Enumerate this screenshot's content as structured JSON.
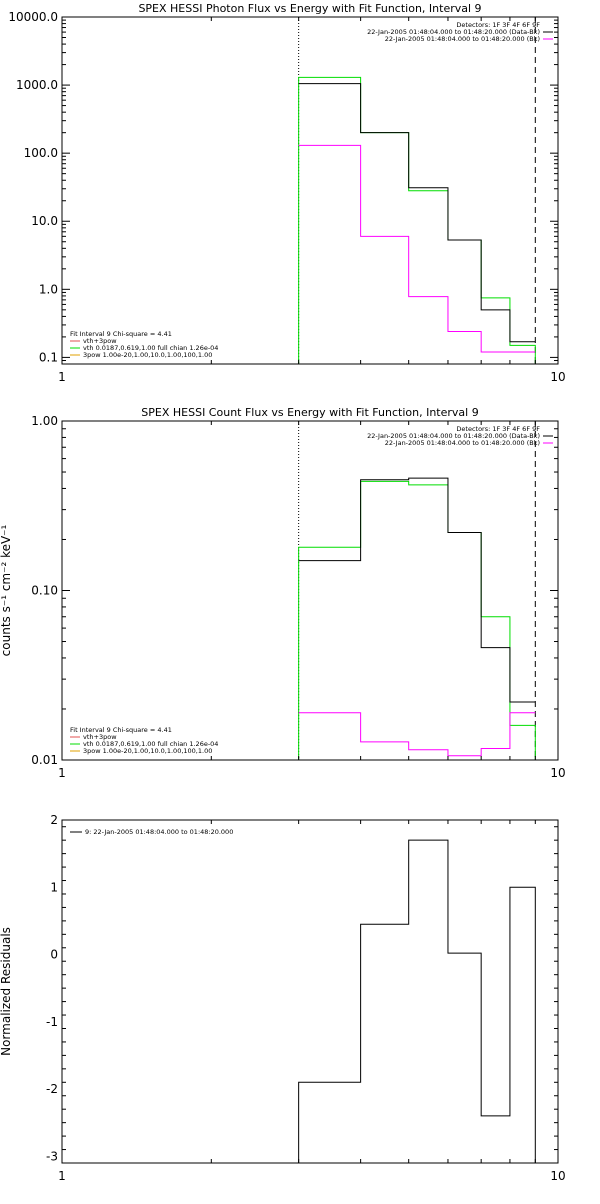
{
  "chart_data": [
    {
      "type": "line",
      "title": "SPEX HESSI Photon Flux vs Energy with Fit Function, Interval 9",
      "xlabel": "",
      "ylabel": "",
      "xscale": "log",
      "yscale": "log",
      "xlim": [
        1,
        10
      ],
      "ylim": [
        0.08,
        10000
      ],
      "x_ticks": [
        "1",
        "10"
      ],
      "y_ticks": [
        {
          "value": 0.1,
          "label": "0.1"
        },
        {
          "value": 1,
          "label": "1.0"
        },
        {
          "value": 10,
          "label": "10.0"
        },
        {
          "value": 100,
          "label": "100.0"
        },
        {
          "value": 1000,
          "label": "1000.0"
        },
        {
          "value": 10000,
          "label": "10000.0"
        }
      ],
      "header_lines": [
        "Detectors: 1F 3F 4F 6F 9F",
        "22-Jan-2005 01:48:04.000 to 01:48:20.000 (Data-Bk)",
        "22-Jan-2005 01:48:04.000 to 01:48:20.000 (Bk)"
      ],
      "header_colors": [
        "#000000",
        "#000000",
        "#ff00ff"
      ],
      "legend_title": "Fit Interval 9   Chi-square = 4.41",
      "legend_entries": [
        {
          "text": "vth+3pow",
          "color": "#e05050"
        },
        {
          "text": "vth 0.0187,0.619,1.00  full chian 1.26e-04",
          "color": "#00dd00"
        },
        {
          "text": "3pow 1.00e-20,1.00,10.0,1.00,100,1.00",
          "color": "#e0a000"
        }
      ],
      "legend_position": "bottom-left",
      "vlines": [
        {
          "x": 3,
          "style": "dotted",
          "color": "#000000"
        },
        {
          "x": 9,
          "style": "dashed",
          "color": "#000000"
        }
      ],
      "edges": [
        3,
        4,
        5,
        6,
        7,
        8,
        9
      ],
      "series": [
        {
          "color": "#00dd00",
          "values": [
            1300,
            200,
            28,
            5.3,
            0.75,
            0.15
          ],
          "drop_to_bottom": true
        },
        {
          "color": "#000000",
          "values": [
            1050,
            200,
            31,
            5.3,
            0.5,
            0.17
          ],
          "drop_to_bottom": false
        },
        {
          "color": "#ff00ff",
          "values": [
            130,
            6,
            0.78,
            0.24,
            0.12,
            0.12
          ],
          "drop_to_bottom": false
        }
      ]
    },
    {
      "type": "line",
      "title": "SPEX HESSI Count Flux vs Energy with Fit Function, Interval 9",
      "xlabel": "",
      "ylabel": "counts s⁻¹ cm⁻² keV⁻¹",
      "xscale": "log",
      "yscale": "log",
      "xlim": [
        1,
        10
      ],
      "ylim": [
        0.01,
        1.0
      ],
      "x_ticks": [
        "1",
        "10"
      ],
      "y_ticks": [
        {
          "value": 0.01,
          "label": "0.01"
        },
        {
          "value": 0.1,
          "label": "0.10"
        },
        {
          "value": 1,
          "label": "1.00"
        }
      ],
      "header_lines": [
        "Detectors: 1F 3F 4F 6F 9F",
        "22-Jan-2005 01:48:04.000 to 01:48:20.000 (Data-Bk)",
        "22-Jan-2005 01:48:04.000 to 01:48:20.000 (Bk)"
      ],
      "header_colors": [
        "#000000",
        "#000000",
        "#ff00ff"
      ],
      "legend_title": "Fit Interval 9   Chi-square = 4.41",
      "legend_entries": [
        {
          "text": "vth+3pow",
          "color": "#e05050"
        },
        {
          "text": "vth 0.0187,0.619,1.00  full chian 1.26e-04",
          "color": "#00dd00"
        },
        {
          "text": "3pow 1.00e-20,1.00,10.0,1.00,100,1.00",
          "color": "#e0a000"
        }
      ],
      "legend_position": "bottom-left",
      "vlines": [
        {
          "x": 3,
          "style": "dotted",
          "color": "#000000"
        },
        {
          "x": 9,
          "style": "dashed",
          "color": "#000000"
        }
      ],
      "edges": [
        3,
        4,
        5,
        6,
        7,
        8,
        9
      ],
      "series": [
        {
          "color": "#00dd00",
          "values": [
            0.18,
            0.44,
            0.42,
            0.22,
            0.07,
            0.016
          ],
          "drop_to_bottom": true
        },
        {
          "color": "#000000",
          "values": [
            0.15,
            0.45,
            0.46,
            0.22,
            0.046,
            0.022
          ],
          "drop_to_bottom": false
        },
        {
          "color": "#ff00ff",
          "values": [
            0.019,
            0.0128,
            0.0115,
            0.0106,
            0.0117,
            0.019
          ],
          "drop_to_bottom": false
        }
      ]
    },
    {
      "type": "line",
      "title": "",
      "xlabel": "",
      "ylabel": "Normalized Residuals",
      "xscale": "log",
      "yscale": "linear",
      "xlim": [
        1,
        10
      ],
      "ylim": [
        -3.1,
        2
      ],
      "x_ticks": [
        "1",
        "10"
      ],
      "y_ticks": [
        {
          "value": -3,
          "label": "-3"
        },
        {
          "value": -2,
          "label": "-2"
        },
        {
          "value": -1,
          "label": "-1"
        },
        {
          "value": 0,
          "label": "0"
        },
        {
          "value": 1,
          "label": "1"
        },
        {
          "value": 2,
          "label": "2"
        }
      ],
      "legend_entries": [
        {
          "text": "9: 22-Jan-2005 01:48:04.000 to 01:48:20.000",
          "color": "#000000"
        }
      ],
      "legend_position": "top-left",
      "edges": [
        3,
        4,
        5,
        6,
        7,
        8,
        9
      ],
      "series": [
        {
          "color": "#000000",
          "values": [
            -1.9,
            0.45,
            1.7,
            0.02,
            -2.4,
            1.0
          ],
          "drop_to_bottom": true
        }
      ]
    }
  ]
}
